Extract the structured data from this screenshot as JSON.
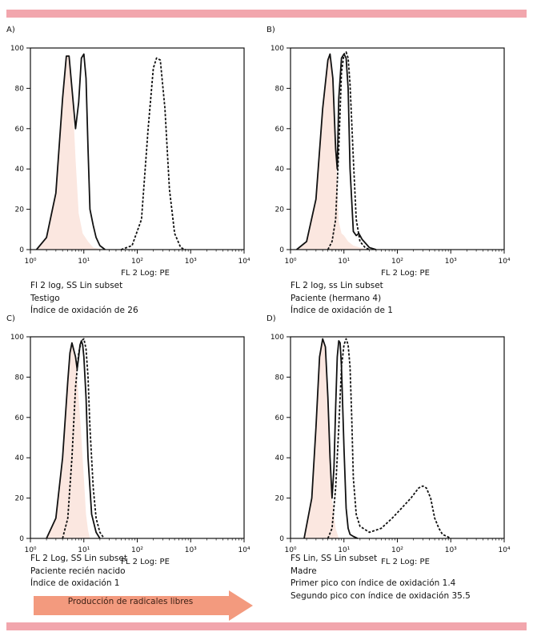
{
  "colors": {
    "band": "#f2a6ad",
    "fill": "#fbe7e0",
    "arrow": "#f39a7e",
    "line": "#111111"
  },
  "arrow": {
    "label": "Producción de radicales libres"
  },
  "panels": [
    {
      "label": "A)",
      "caption": [
        "Fl 2 log, SS Lin subset",
        "Testigo",
        "Índice de oxidación de 26"
      ]
    },
    {
      "label": "B)",
      "caption": [
        "FL 2 log, ss Lin subset",
        "Paciente (hermano 4)",
        "Índice de oxidación de 1"
      ]
    },
    {
      "label": "C)",
      "caption": [
        "FL 2 Log, SS Lin subset",
        "Paciente recién nacido",
        "Índice de oxidación 1"
      ]
    },
    {
      "label": "D)",
      "caption": [
        "FS Lin, SS Lin subset",
        "Madre",
        "Primer pico con índice de oxidación 1.4",
        "Segundo pico con índice de oxidación 35.5"
      ]
    }
  ],
  "chart_data": [
    {
      "type": "line",
      "xlabel": "FL 2 Log: PE",
      "ylabel": "",
      "xscale": "log",
      "xlim": [
        1,
        10000
      ],
      "ylim": [
        0,
        100
      ],
      "xticks": [
        "10⁰",
        "10¹",
        "10²",
        "10³",
        "10⁴"
      ],
      "yticks": [
        0,
        20,
        40,
        60,
        80,
        100
      ],
      "series": [
        {
          "style": "filled",
          "x": [
            1.3,
            2,
            3,
            4,
            4.7,
            5.3,
            6,
            7,
            8,
            9.5,
            12,
            15,
            25
          ],
          "y": [
            0,
            6,
            28,
            75,
            96,
            97,
            82,
            45,
            18,
            8,
            4,
            1,
            0
          ]
        },
        {
          "style": "solid",
          "x": [
            1.3,
            2,
            3,
            4,
            4.7,
            5.3,
            6,
            7,
            8,
            9,
            10,
            11,
            12,
            13,
            15,
            17,
            20,
            25
          ],
          "y": [
            0,
            6,
            28,
            75,
            96,
            96,
            80,
            60,
            73,
            95,
            97,
            85,
            50,
            20,
            12,
            6,
            2,
            0
          ]
        },
        {
          "style": "dashed",
          "x": [
            50,
            80,
            120,
            160,
            200,
            230,
            270,
            330,
            400,
            500,
            650,
            800
          ],
          "y": [
            0,
            2,
            15,
            60,
            90,
            95,
            94,
            70,
            30,
            8,
            1,
            0
          ]
        }
      ]
    },
    {
      "type": "line",
      "xlabel": "FL 2 Log: PE",
      "ylabel": "",
      "xscale": "log",
      "xlim": [
        1,
        10000
      ],
      "ylim": [
        0,
        100
      ],
      "xticks": [
        "10⁰",
        "10¹",
        "10²",
        "10³",
        "10⁴"
      ],
      "yticks": [
        0,
        20,
        40,
        60,
        80,
        100
      ],
      "series": [
        {
          "style": "filled",
          "x": [
            1.3,
            2,
            3,
            4,
            5,
            5.5,
            6.2,
            7,
            8,
            9,
            10,
            12,
            15,
            20,
            30
          ],
          "y": [
            0,
            4,
            25,
            70,
            94,
            97,
            85,
            50,
            14,
            8,
            7,
            4,
            2,
            1,
            0
          ]
        },
        {
          "style": "solid",
          "x": [
            1.3,
            2,
            3,
            4,
            5,
            5.5,
            6.2,
            7,
            7.5,
            8,
            9,
            10,
            11,
            12,
            13,
            15,
            17,
            19,
            22,
            30,
            40
          ],
          "y": [
            0,
            4,
            25,
            70,
            94,
            97,
            85,
            50,
            40,
            75,
            95,
            97,
            95,
            80,
            40,
            9,
            7,
            8,
            5,
            1,
            0
          ]
        },
        {
          "style": "dashed",
          "x": [
            5,
            6,
            7,
            8,
            9,
            10,
            11,
            12,
            13,
            15,
            17,
            20,
            25,
            30
          ],
          "y": [
            0,
            4,
            15,
            50,
            88,
            97,
            98,
            95,
            82,
            45,
            15,
            4,
            1,
            0
          ]
        }
      ]
    },
    {
      "type": "line",
      "xlabel": "FL 2 Log: PE",
      "ylabel": "",
      "xscale": "log",
      "xlim": [
        1,
        10000
      ],
      "ylim": [
        0,
        100
      ],
      "xticks": [
        "10⁰",
        "10¹",
        "10²",
        "10³",
        "10⁴"
      ],
      "yticks": [
        0,
        20,
        40,
        60,
        80,
        100
      ],
      "series": [
        {
          "style": "filled",
          "x": [
            2,
            3,
            4,
            5,
            5.5,
            6,
            7,
            8,
            9,
            10,
            11,
            12,
            13
          ],
          "y": [
            0,
            10,
            40,
            78,
            92,
            97,
            90,
            70,
            50,
            30,
            12,
            4,
            0
          ]
        },
        {
          "style": "solid",
          "x": [
            2,
            3,
            4,
            5,
            5.5,
            6,
            7,
            7.5,
            8,
            8.5,
            9,
            9.5,
            10,
            11,
            12,
            14,
            17,
            20
          ],
          "y": [
            0,
            10,
            40,
            78,
            92,
            97,
            90,
            84,
            90,
            96,
            98,
            96,
            90,
            70,
            40,
            12,
            3,
            0
          ]
        },
        {
          "style": "dashed",
          "x": [
            4,
            5,
            6,
            7,
            8,
            9,
            10,
            11,
            12,
            13,
            15,
            17,
            20,
            24
          ],
          "y": [
            0,
            10,
            40,
            75,
            92,
            98,
            99,
            94,
            80,
            55,
            25,
            10,
            3,
            0
          ]
        }
      ]
    },
    {
      "type": "line",
      "xlabel": "FL 2 Log: PE",
      "ylabel": "",
      "xscale": "log",
      "xlim": [
        1,
        10000
      ],
      "ylim": [
        0,
        100
      ],
      "xticks": [
        "10⁰",
        "10¹",
        "10²",
        "10³",
        "10⁴"
      ],
      "yticks": [
        0,
        20,
        40,
        60,
        80,
        100
      ],
      "series": [
        {
          "style": "filled",
          "x": [
            1.8,
            2.5,
            3,
            3.5,
            4,
            4.5,
            5,
            5.5,
            6,
            7,
            8
          ],
          "y": [
            0,
            20,
            55,
            90,
            99,
            95,
            70,
            40,
            20,
            5,
            0
          ]
        },
        {
          "style": "solid",
          "x": [
            1.8,
            2.5,
            3,
            3.5,
            4,
            4.5,
            5,
            5.5,
            6,
            6.5,
            7,
            7.5,
            8,
            8.5,
            9,
            10,
            11,
            12,
            13,
            15,
            18
          ],
          "y": [
            0,
            20,
            55,
            90,
            99,
            95,
            70,
            40,
            20,
            35,
            65,
            90,
            98,
            97,
            85,
            45,
            15,
            5,
            2,
            1,
            0
          ]
        },
        {
          "style": "dashed",
          "x": [
            5,
            6,
            7,
            8,
            9,
            10,
            11,
            12,
            13,
            14,
            15,
            17,
            20,
            30,
            50,
            80,
            120,
            180,
            250,
            300,
            350,
            420,
            500,
            600,
            700,
            850,
            1000
          ],
          "y": [
            0,
            5,
            25,
            55,
            85,
            96,
            99,
            96,
            85,
            60,
            30,
            12,
            6,
            3,
            5,
            10,
            15,
            20,
            25,
            26,
            25,
            20,
            10,
            5,
            2,
            1,
            0
          ]
        }
      ]
    }
  ]
}
